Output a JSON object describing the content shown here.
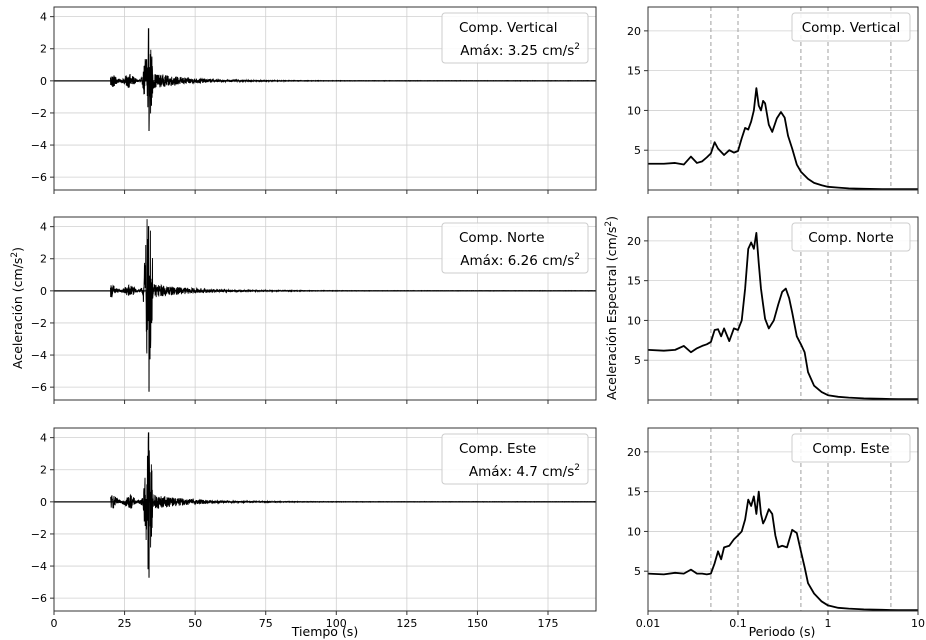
{
  "chart_data": [
    {
      "type": "line",
      "panel": "time-vertical",
      "legend": {
        "title": "Comp. Vertical",
        "peak": "Amáx: 3.25 cm/s",
        "placement": "top-right"
      },
      "xlim": [
        0,
        192
      ],
      "ylim": [
        -6.8,
        4.6
      ],
      "xticks": [
        0,
        25,
        50,
        75,
        100,
        125,
        150,
        175
      ],
      "yticks": [
        -6,
        -4,
        -2,
        0,
        2,
        4
      ],
      "ytick_labels": [
        "−6",
        "−4",
        "−2",
        "0",
        "2",
        "4"
      ],
      "signal": {
        "onset": 20,
        "peak_time": 33.5,
        "peak_pos": 3.25,
        "peak_neg": -3.1,
        "noise": 0.45,
        "decay": 13,
        "max_time": 192
      },
      "grid": true
    },
    {
      "type": "line",
      "panel": "time-norte",
      "legend": {
        "title": "Comp. Norte",
        "peak": "Amáx: 6.26 cm/s",
        "placement": "top-right"
      },
      "xlim": [
        0,
        192
      ],
      "ylim": [
        -6.8,
        4.6
      ],
      "xticks": [
        0,
        25,
        50,
        75,
        100,
        125,
        150,
        175
      ],
      "yticks": [
        -6,
        -4,
        -2,
        0,
        2,
        4
      ],
      "ytick_labels": [
        "−6",
        "−4",
        "−2",
        "0",
        "2",
        "4"
      ],
      "signal": {
        "onset": 20,
        "peak_time": 33.5,
        "peak_pos": 4.0,
        "peak_neg": -6.26,
        "noise": 0.4,
        "decay": 14,
        "max_time": 192
      },
      "grid": true
    },
    {
      "type": "line",
      "panel": "time-este",
      "legend": {
        "title": "Comp. Este",
        "peak": "Amáx: 4.7 cm/s",
        "placement": "top-right"
      },
      "xlim": [
        0,
        192
      ],
      "ylim": [
        -6.8,
        4.6
      ],
      "xticks": [
        0,
        25,
        50,
        75,
        100,
        125,
        150,
        175
      ],
      "xtick_labels": [
        "0",
        "25",
        "50",
        "75",
        "100",
        "125",
        "150",
        "175"
      ],
      "yticks": [
        -6,
        -4,
        -2,
        0,
        2,
        4
      ],
      "ytick_labels": [
        "−6",
        "−4",
        "−2",
        "0",
        "2",
        "4"
      ],
      "signal": {
        "onset": 20,
        "peak_time": 33.5,
        "peak_pos": 4.3,
        "peak_neg": -4.7,
        "noise": 0.45,
        "decay": 13,
        "max_time": 192
      },
      "grid": true
    },
    {
      "type": "line",
      "panel": "spectrum-vertical",
      "legend": {
        "title": "Comp. Vertical",
        "placement": "top-right"
      },
      "xscale": "log",
      "xlim": [
        0.01,
        10
      ],
      "ylim": [
        0,
        23
      ],
      "xticks": [
        0.01,
        0.1,
        1,
        10
      ],
      "yticks": [
        5,
        10,
        15,
        20
      ],
      "ytick_labels": [
        "5",
        "10",
        "15",
        "20"
      ],
      "minor_xticks": [
        0.05,
        0.5,
        5
      ],
      "x": [
        0.01,
        0.015,
        0.02,
        0.025,
        0.03,
        0.035,
        0.04,
        0.045,
        0.05,
        0.055,
        0.06,
        0.07,
        0.08,
        0.09,
        0.1,
        0.11,
        0.12,
        0.13,
        0.14,
        0.15,
        0.16,
        0.17,
        0.18,
        0.19,
        0.2,
        0.22,
        0.24,
        0.27,
        0.3,
        0.33,
        0.36,
        0.4,
        0.45,
        0.5,
        0.6,
        0.7,
        0.85,
        1.0,
        1.3,
        1.7,
        2.5,
        4,
        6,
        10
      ],
      "y": [
        3.3,
        3.3,
        3.4,
        3.2,
        4.2,
        3.4,
        3.6,
        4.1,
        4.6,
        6.0,
        5.2,
        4.4,
        5.0,
        4.7,
        4.9,
        6.5,
        7.8,
        7.6,
        8.6,
        10.0,
        12.8,
        10.6,
        10.0,
        11.2,
        10.9,
        8.2,
        7.3,
        9.0,
        9.8,
        9.1,
        6.8,
        5.2,
        3.2,
        2.3,
        1.4,
        0.9,
        0.6,
        0.4,
        0.3,
        0.2,
        0.15,
        0.1,
        0.1,
        0.1
      ],
      "grid": true
    },
    {
      "type": "line",
      "panel": "spectrum-norte",
      "legend": {
        "title": "Comp. Norte",
        "placement": "top-right"
      },
      "xscale": "log",
      "xlim": [
        0.01,
        10
      ],
      "ylim": [
        0,
        23
      ],
      "xticks": [
        0.01,
        0.1,
        1,
        10
      ],
      "yticks": [
        5,
        10,
        15,
        20
      ],
      "ytick_labels": [
        "5",
        "10",
        "15",
        "20"
      ],
      "minor_xticks": [
        0.05,
        0.5,
        5
      ],
      "x": [
        0.01,
        0.015,
        0.02,
        0.025,
        0.03,
        0.035,
        0.04,
        0.045,
        0.05,
        0.055,
        0.06,
        0.065,
        0.07,
        0.08,
        0.09,
        0.1,
        0.11,
        0.12,
        0.13,
        0.14,
        0.15,
        0.16,
        0.17,
        0.18,
        0.19,
        0.2,
        0.22,
        0.25,
        0.28,
        0.31,
        0.34,
        0.37,
        0.4,
        0.45,
        0.5,
        0.55,
        0.6,
        0.7,
        0.85,
        1.0,
        1.3,
        1.7,
        2.5,
        4,
        6,
        10
      ],
      "y": [
        6.3,
        6.2,
        6.3,
        6.8,
        6.0,
        6.5,
        6.8,
        7.0,
        7.3,
        8.8,
        8.9,
        8.0,
        9.0,
        7.4,
        9.0,
        8.8,
        10.0,
        14.0,
        19.0,
        19.8,
        19.0,
        21.0,
        17.2,
        14.0,
        12.0,
        10.2,
        9.0,
        10.0,
        12.0,
        13.6,
        14.0,
        12.8,
        11.0,
        8.0,
        7.0,
        6.0,
        3.5,
        1.8,
        1.0,
        0.6,
        0.4,
        0.3,
        0.2,
        0.15,
        0.1,
        0.1
      ],
      "grid": true
    },
    {
      "type": "line",
      "panel": "spectrum-este",
      "legend": {
        "title": "Comp. Este",
        "placement": "top-right"
      },
      "xscale": "log",
      "xlim": [
        0.01,
        10
      ],
      "ylim": [
        0,
        23
      ],
      "xticks": [
        0.01,
        0.1,
        1,
        10
      ],
      "xtick_labels": [
        "0.01",
        "0.1",
        "1",
        "10"
      ],
      "yticks": [
        5,
        10,
        15,
        20
      ],
      "ytick_labels": [
        "5",
        "10",
        "15",
        "20"
      ],
      "minor_xticks": [
        0.05,
        0.5,
        5
      ],
      "x": [
        0.01,
        0.015,
        0.02,
        0.025,
        0.03,
        0.035,
        0.04,
        0.045,
        0.05,
        0.055,
        0.06,
        0.065,
        0.07,
        0.08,
        0.09,
        0.1,
        0.11,
        0.12,
        0.13,
        0.14,
        0.15,
        0.16,
        0.17,
        0.18,
        0.19,
        0.2,
        0.22,
        0.24,
        0.26,
        0.28,
        0.31,
        0.35,
        0.4,
        0.45,
        0.5,
        0.55,
        0.6,
        0.7,
        0.85,
        1.0,
        1.3,
        1.7,
        2.5,
        4,
        6,
        10
      ],
      "y": [
        4.7,
        4.6,
        4.8,
        4.7,
        5.2,
        4.7,
        4.7,
        4.6,
        4.7,
        6.0,
        7.5,
        6.5,
        8.0,
        8.2,
        9.0,
        9.5,
        10.0,
        11.5,
        14.0,
        13.2,
        14.4,
        12.2,
        15.0,
        12.2,
        11.0,
        11.5,
        12.8,
        12.2,
        9.5,
        8.0,
        8.2,
        8.0,
        10.2,
        9.8,
        7.5,
        5.5,
        3.5,
        2.2,
        1.2,
        0.7,
        0.4,
        0.3,
        0.2,
        0.15,
        0.1,
        0.1
      ],
      "grid": true
    }
  ],
  "axes_labels": {
    "time_ylabel": "Aceleración (cm/s",
    "time_xlabel": "Tiempo (s)",
    "spec_ylabel": "Aceleración Espectral (cm/s",
    "spec_xlabel": "Periodo (s)",
    "sup": "2",
    "close_paren": ")"
  },
  "colors": {
    "trace": "#000000",
    "grid": "#d0d0d0",
    "vline": "#a0a0a0",
    "axis": "#333333"
  }
}
